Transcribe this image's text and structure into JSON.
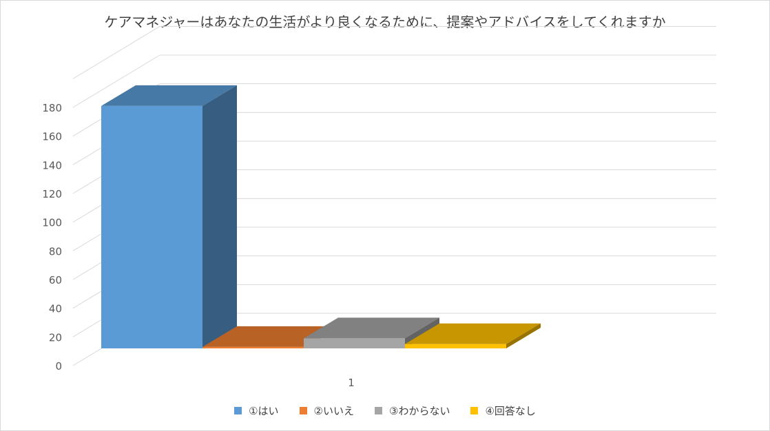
{
  "chart_data": {
    "type": "bar",
    "title": "ケアマネジャーはあなたの生活がより良くなるために、提案やアドバイスをしてくれますか",
    "categories": [
      "1"
    ],
    "series": [
      {
        "name": "①はい",
        "values": [
          169
        ],
        "color": "#5b9bd5"
      },
      {
        "name": "②いいえ",
        "values": [
          1
        ],
        "color": "#ed7d31"
      },
      {
        "name": "③わからない",
        "values": [
          7
        ],
        "color": "#a5a5a5"
      },
      {
        "name": "④回答なし",
        "values": [
          3
        ],
        "color": "#ffc000"
      }
    ],
    "ylim": [
      0,
      180
    ],
    "yticks": [
      "0",
      "20",
      "40",
      "60",
      "80",
      "100",
      "120",
      "140",
      "160",
      "180"
    ],
    "xlabel": "",
    "ylabel": "",
    "grid": true,
    "legend_position": "bottom",
    "three_d": true
  }
}
